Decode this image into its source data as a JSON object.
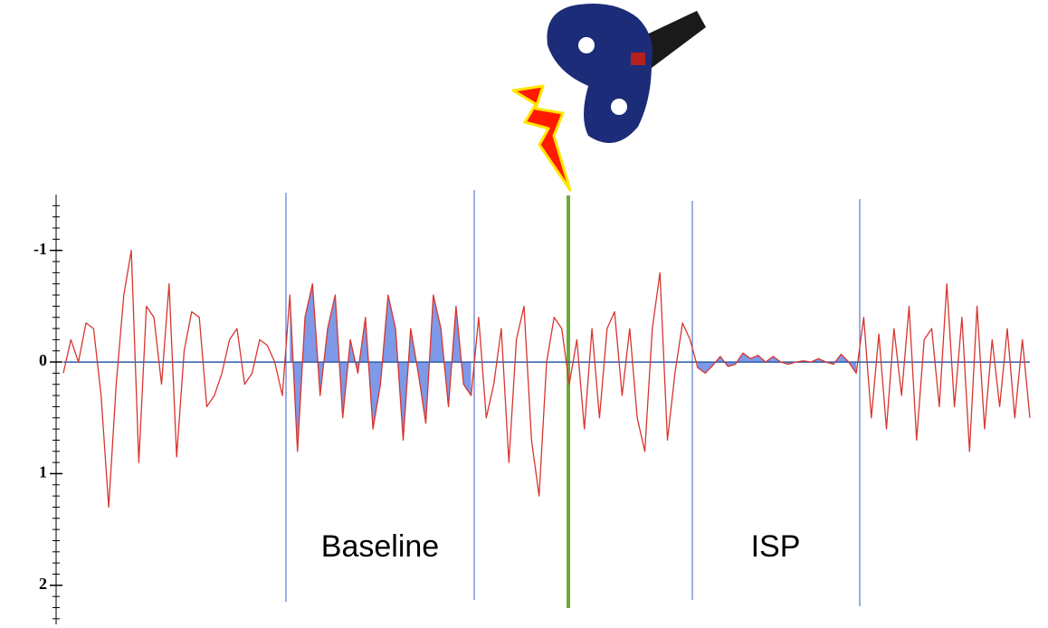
{
  "chart_data": {
    "type": "line",
    "annotations": [
      "Baseline",
      "ISP"
    ],
    "ylim": [
      2.35,
      -1.5
    ],
    "yticks": [
      -1,
      0,
      1,
      2
    ],
    "yminorticks": [
      -1.4,
      -1.3,
      -1.2,
      -1.1,
      -0.9,
      -0.8,
      -0.7,
      -0.6,
      -0.5,
      -0.4,
      -0.3,
      -0.2,
      -0.1,
      0.1,
      0.2,
      0.3,
      0.4,
      0.5,
      0.6,
      0.7,
      0.8,
      0.9,
      1.1,
      1.2,
      1.3,
      1.4,
      1.5,
      1.6,
      1.7,
      1.8,
      1.9,
      2.1,
      2.2,
      2.3
    ],
    "color": "#d8352f",
    "fill_color": "#6f8ee6",
    "values": [
      0.1,
      -0.2,
      0.0,
      -0.35,
      -0.3,
      0.3,
      1.3,
      0.2,
      -0.6,
      -1.0,
      0.9,
      -0.5,
      -0.4,
      0.2,
      -0.7,
      0.85,
      -0.1,
      -0.45,
      -0.4,
      0.4,
      0.3,
      0.1,
      -0.2,
      -0.3,
      0.2,
      0.1,
      -0.2,
      -0.15,
      0.0,
      0.3,
      -0.6,
      0.8,
      -0.4,
      -0.7,
      0.3,
      -0.3,
      -0.6,
      0.5,
      -0.2,
      0.1,
      -0.4,
      0.6,
      0.2,
      -0.6,
      -0.3,
      0.7,
      -0.3,
      0.1,
      0.55,
      -0.6,
      -0.3,
      0.4,
      -0.5,
      0.2,
      0.3,
      -0.4,
      0.5,
      0.2,
      -0.3,
      0.9,
      -0.2,
      -0.5,
      0.7,
      1.2,
      0.0,
      -0.4,
      -0.3,
      0.2,
      -0.2,
      0.6,
      -0.3,
      0.5,
      -0.3,
      -0.45,
      0.3,
      -0.3,
      0.5,
      0.8,
      -0.3,
      -0.8,
      0.7,
      0.1,
      -0.35,
      -0.2,
      0.05,
      0.1,
      0.03,
      -0.05,
      0.04,
      0.02,
      -0.08,
      -0.03,
      -0.06,
      0.0,
      -0.05,
      0.0,
      0.02,
      0.0,
      -0.01,
      0.0,
      -0.03,
      0.0,
      0.02,
      -0.07,
      0.0,
      0.1,
      -0.4,
      0.5,
      -0.25,
      0.6,
      -0.3,
      0.3,
      -0.5,
      0.7,
      -0.2,
      -0.3,
      0.4,
      -0.7,
      0.4,
      -0.4,
      0.8,
      -0.5,
      0.6,
      -0.2,
      0.4,
      -0.3,
      0.5,
      -0.2,
      0.5
    ]
  }
}
